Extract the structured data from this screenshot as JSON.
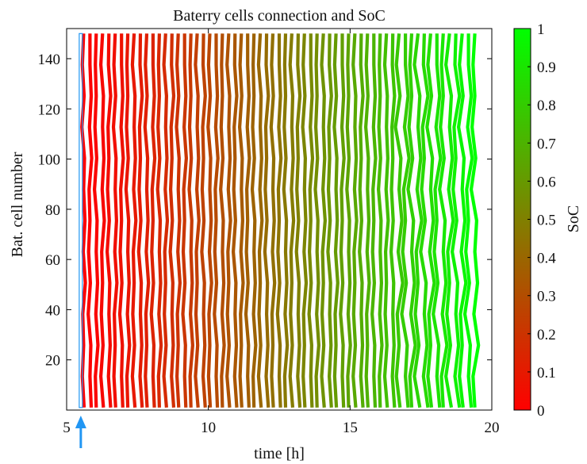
{
  "chart_data": {
    "type": "heatmap",
    "title": "Baterry cells connection and SoC",
    "xlabel": "time [h]",
    "ylabel": "Bat. cell number",
    "colorbar_label": "SoC",
    "xlim": [
      5,
      20
    ],
    "ylim": [
      0,
      152
    ],
    "x_ticks": [
      "5",
      "10",
      "15",
      "20"
    ],
    "y_ticks": [
      "20",
      "40",
      "60",
      "80",
      "100",
      "120",
      "140"
    ],
    "colorbar_ticks": [
      "0",
      "0.1",
      "0.2",
      "0.3",
      "0.4",
      "0.5",
      "0.6",
      "0.7",
      "0.8",
      "0.9",
      "1"
    ],
    "colormap": {
      "low": "#ff0000",
      "mid": "#808000",
      "high": "#00ff00"
    },
    "soc_range": [
      0,
      1
    ],
    "cell_count": 150,
    "connection_start_h": 5.6,
    "connection_end_h": 19.4,
    "connection_columns": 63,
    "marker": {
      "time_h": 5.5,
      "color": "#2196f3"
    },
    "grid": false
  }
}
